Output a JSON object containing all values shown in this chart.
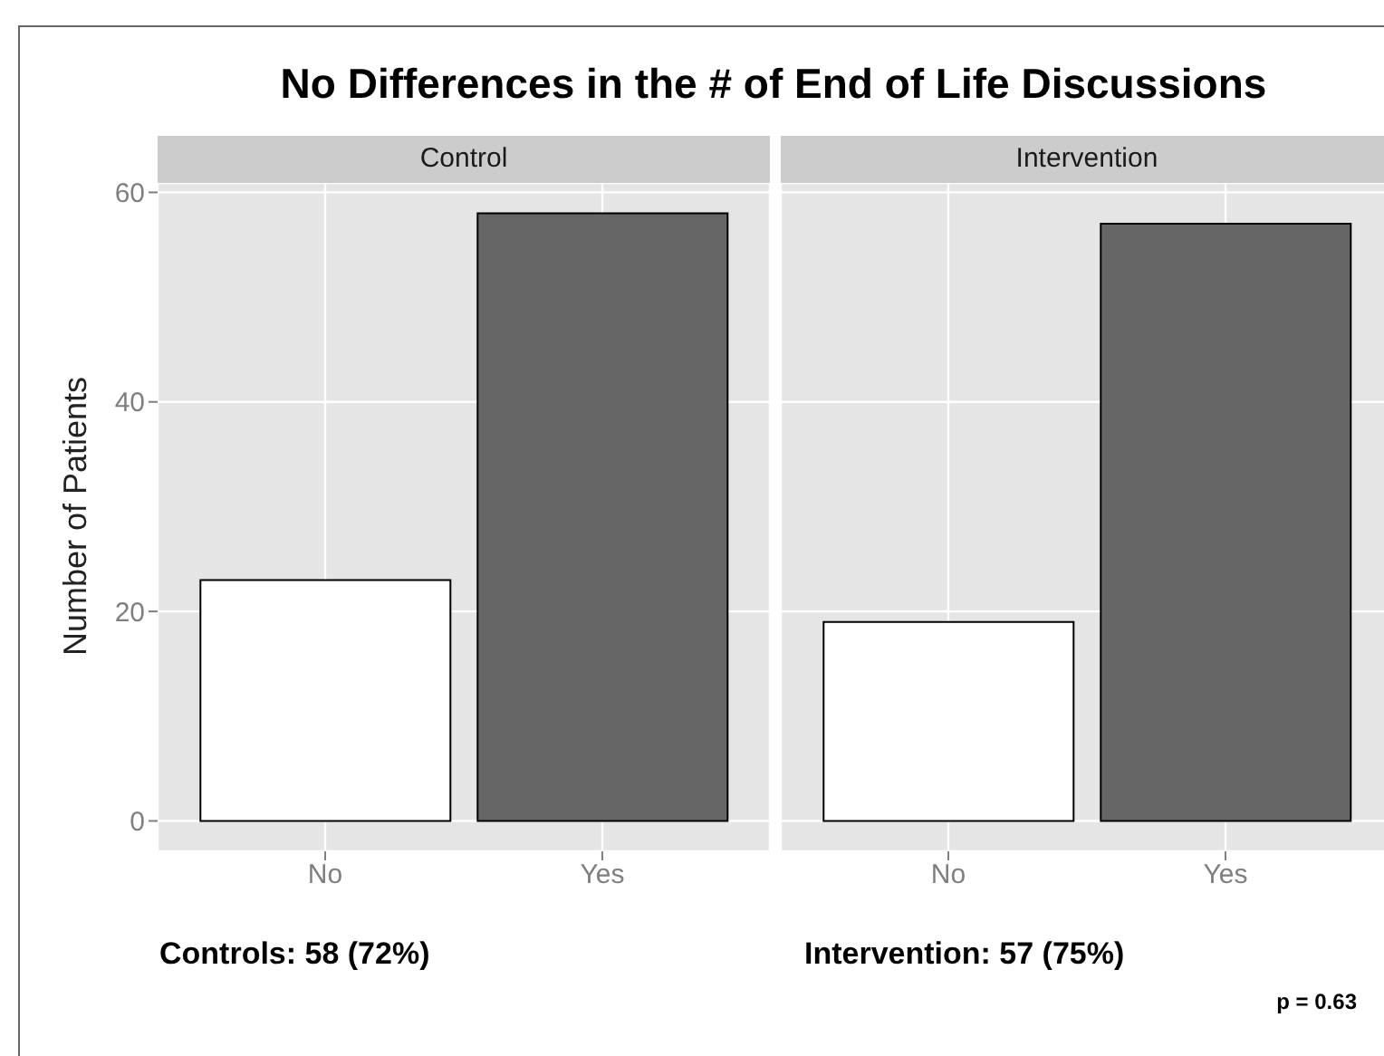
{
  "chart_data": [
    {
      "type": "bar",
      "title": "No Differences in the # of End of Life Discussions",
      "subtitle": "Control",
      "ylabel": "Number of Patients",
      "categories": [
        "No",
        "Yes"
      ],
      "values": [
        23,
        58
      ],
      "colors": [
        "#ffffff",
        "#666666"
      ],
      "ylim": [
        -2.9,
        60.9
      ],
      "yticks": [
        0,
        20,
        40,
        60
      ],
      "grid": true,
      "annotations": [
        "Controls: 58 (72%)"
      ]
    },
    {
      "type": "bar",
      "subtitle": "Intervention",
      "categories": [
        "No",
        "Yes"
      ],
      "values": [
        19,
        57
      ],
      "colors": [
        "#ffffff",
        "#666666"
      ],
      "ylim": [
        -2.9,
        60.9
      ],
      "yticks": [
        0,
        20,
        40,
        60
      ],
      "grid": true,
      "tick_labels": "x",
      "annotations": [
        "Intervention: 57 (75%)",
        "p = 0.63"
      ]
    }
  ]
}
